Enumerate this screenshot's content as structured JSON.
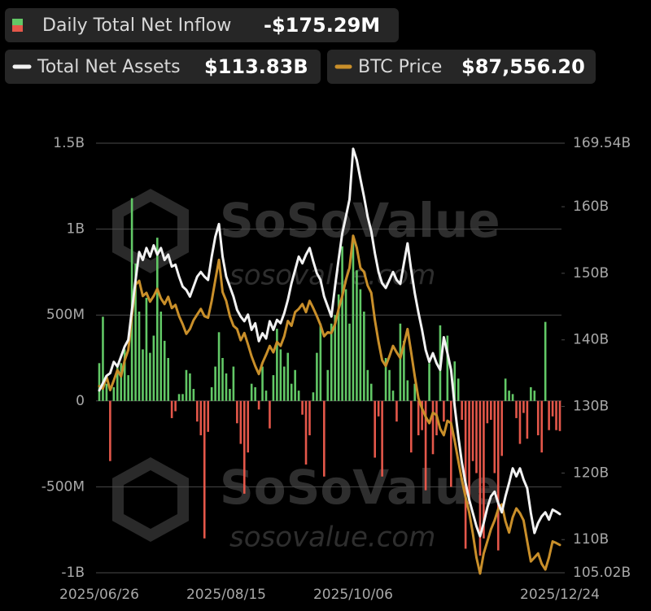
{
  "chart_data": {
    "type": "bar-line",
    "watermark": "SoSoValue",
    "watermark_url": "sosovalue.com",
    "categories": [
      "2025/06/26",
      null,
      null,
      null,
      null,
      null,
      null,
      null,
      null,
      null,
      null,
      null,
      null,
      null,
      null,
      null,
      null,
      null,
      null,
      null,
      null,
      null,
      null,
      null,
      null,
      null,
      null,
      null,
      null,
      null,
      null,
      null,
      null,
      null,
      null,
      "2025/08/15",
      null,
      null,
      null,
      null,
      null,
      null,
      null,
      null,
      null,
      null,
      null,
      null,
      null,
      null,
      null,
      null,
      null,
      null,
      null,
      null,
      null,
      null,
      null,
      null,
      null,
      null,
      null,
      null,
      null,
      null,
      null,
      null,
      null,
      null,
      "2025/10/06",
      null,
      null,
      null,
      null,
      null,
      null,
      null,
      null,
      null,
      null,
      null,
      null,
      null,
      null,
      null,
      null,
      null,
      null,
      null,
      null,
      null,
      null,
      null,
      null,
      null,
      null,
      null,
      null,
      null,
      null,
      null,
      null,
      null,
      null,
      null,
      null,
      null,
      null,
      null,
      null,
      null,
      null,
      null,
      null,
      null,
      null,
      null,
      null,
      null,
      null,
      null,
      null,
      null,
      null,
      null,
      null,
      "2025/12/24"
    ],
    "ylim": [
      -1000,
      1500
    ],
    "yticks": [
      {
        "value": -1000,
        "label": "-1B"
      },
      {
        "value": -500,
        "label": "-500M"
      },
      0,
      {
        "value": 500,
        "label": "500M"
      },
      {
        "value": 1000,
        "label": "1B"
      },
      {
        "value": 1500,
        "label": "1.5B"
      }
    ],
    "y2lim": [
      105.02,
      169.54
    ],
    "y2ticks": [
      {
        "value": 105.02,
        "label": "105.02B"
      },
      {
        "value": 110,
        "label": "110B"
      },
      {
        "value": 120,
        "label": "120B"
      },
      {
        "value": 130,
        "label": "130B"
      },
      {
        "value": 140,
        "label": "140B"
      },
      {
        "value": 150,
        "label": "150B"
      },
      {
        "value": 160,
        "label": "160B"
      },
      {
        "value": 169.54,
        "label": "169.54B"
      }
    ],
    "y3lim": [
      84100,
      137500
    ],
    "grid": true,
    "series": [
      {
        "name": "Daily Total Net Inflow",
        "latest_label": "-$175.29M",
        "type": "bar",
        "positive_color": "#62c866",
        "negative_color": "#e4574a",
        "values": [
          220,
          490,
          100,
          -350,
          80,
          200,
          220,
          300,
          150,
          1180,
          800,
          520,
          300,
          600,
          280,
          380,
          950,
          520,
          350,
          250,
          -100,
          -60,
          40,
          40,
          180,
          160,
          70,
          -120,
          -200,
          -800,
          -180,
          80,
          200,
          400,
          250,
          160,
          70,
          200,
          -130,
          -250,
          -540,
          -300,
          100,
          80,
          -50,
          200,
          60,
          -160,
          150,
          420,
          300,
          200,
          280,
          100,
          180,
          60,
          -80,
          -370,
          -200,
          50,
          280,
          450,
          -440,
          180,
          450,
          500,
          620,
          900,
          650,
          450,
          960,
          760,
          650,
          520,
          180,
          100,
          -330,
          -90,
          -440,
          250,
          180,
          60,
          -120,
          450,
          350,
          120,
          -300,
          100,
          -200,
          -170,
          -520,
          220,
          -310,
          -200,
          440,
          -120,
          380,
          -500,
          230,
          130,
          -110,
          -860,
          -600,
          -350,
          -420,
          -900,
          -800,
          -130,
          -110,
          -420,
          -870,
          -320,
          130,
          60,
          40,
          -100,
          -250,
          -70,
          -220,
          80,
          60,
          -200,
          -300,
          460,
          -170,
          -90,
          -170,
          -175.29
        ]
      },
      {
        "name": "Total Net Assets",
        "latest_label": "$113.83B",
        "type": "line",
        "axis": "y2",
        "color": "#f2f2f2",
        "values": [
          132.4,
          133.5,
          134.6,
          135.0,
          136.7,
          136.0,
          137.5,
          139.0,
          140.0,
          144.5,
          148.9,
          153.2,
          152.0,
          153.8,
          152.5,
          154.2,
          152.8,
          153.8,
          152.0,
          152.8,
          151.0,
          151.3,
          149.5,
          148.0,
          147.5,
          146.5,
          148.0,
          149.5,
          150.2,
          149.5,
          149.0,
          152.5,
          155.5,
          157.4,
          152.5,
          149.5,
          148.0,
          146.5,
          144.5,
          143.5,
          142.8,
          143.8,
          141.5,
          142.5,
          139.8,
          141.0,
          140.2,
          142.8,
          141.5,
          143.0,
          142.5,
          144.0,
          146.0,
          148.5,
          150.5,
          152.5,
          151.5,
          152.8,
          153.8,
          151.8,
          150.0,
          149.0,
          146.5,
          145.0,
          143.5,
          148.0,
          152.1,
          156.0,
          158.5,
          161.1,
          168.7,
          167.0,
          164.2,
          161.5,
          158.5,
          156.3,
          153.0,
          150.2,
          148.5,
          147.8,
          149.0,
          150.2,
          149.0,
          148.4,
          151.5,
          154.5,
          150.5,
          147.0,
          144.1,
          141.5,
          138.5,
          136.7,
          138.0,
          136.5,
          135.5,
          140.4,
          138.0,
          135.5,
          130.0,
          125.5,
          121.5,
          118.5,
          116.0,
          114.0,
          112.0,
          110.5,
          112.5,
          114.8,
          116.5,
          117.2,
          115.5,
          114.1,
          116.5,
          118.5,
          120.7,
          119.5,
          120.7,
          119.0,
          117.7,
          114.0,
          111.0,
          112.5,
          113.5,
          114.1,
          113.0,
          114.5,
          114.2,
          113.83
        ]
      },
      {
        "name": "BTC Price",
        "latest_label": "$87,556.20",
        "type": "line",
        "axis": "y3",
        "color": "#c98f2a",
        "values": [
          107300,
          107000,
          108500,
          106800,
          108000,
          109300,
          108500,
          110500,
          111800,
          116000,
          119900,
          120400,
          118500,
          118900,
          117800,
          118500,
          119400,
          118200,
          117500,
          118400,
          117000,
          117400,
          116000,
          115000,
          113800,
          114400,
          115500,
          116200,
          116900,
          116000,
          115800,
          117900,
          120500,
          123000,
          119000,
          117900,
          116000,
          114800,
          114400,
          113000,
          113900,
          112500,
          111000,
          109800,
          108800,
          110200,
          111200,
          112300,
          111500,
          112800,
          112300,
          113500,
          115400,
          114800,
          116500,
          116900,
          117500,
          116500,
          117900,
          117000,
          116000,
          114900,
          113500,
          114000,
          113900,
          115000,
          116900,
          118500,
          120500,
          122000,
          126000,
          124500,
          122000,
          121500,
          119800,
          118900,
          115500,
          112800,
          110500,
          109800,
          111000,
          112300,
          111500,
          110800,
          112500,
          114400,
          111500,
          108500,
          105800,
          104500,
          103500,
          102700,
          104000,
          103700,
          102000,
          101200,
          103000,
          102700,
          100500,
          98000,
          95600,
          93500,
          91600,
          89000,
          86000,
          84000,
          86500,
          88000,
          89500,
          90600,
          92000,
          92600,
          90500,
          89100,
          91000,
          92100,
          91500,
          90600,
          88000,
          85500,
          86000,
          86500,
          85200,
          84500,
          86000,
          88000,
          87800,
          87556.2
        ]
      }
    ]
  }
}
